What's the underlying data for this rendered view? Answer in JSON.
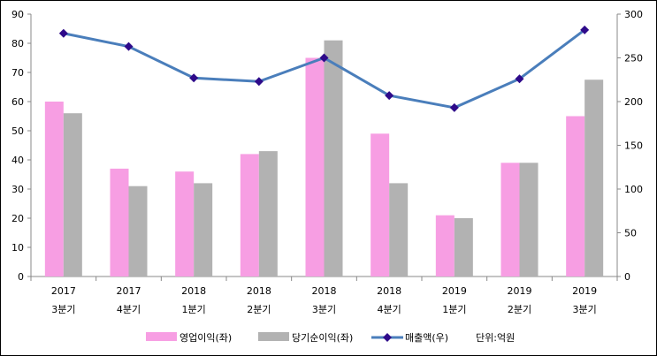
{
  "chart_data": {
    "type": "bar",
    "categories": [
      [
        "2017",
        "3분기"
      ],
      [
        "2017",
        "4분기"
      ],
      [
        "2018",
        "1분기"
      ],
      [
        "2018",
        "2분기"
      ],
      [
        "2018",
        "3분기"
      ],
      [
        "2018",
        "4분기"
      ],
      [
        "2019",
        "1분기"
      ],
      [
        "2019",
        "2분기"
      ],
      [
        "2019",
        "3분기"
      ]
    ],
    "series": [
      {
        "name": "영업이익(좌)",
        "type": "bar",
        "axis": "left",
        "color": "#f79ee3",
        "values": [
          60,
          37,
          36,
          42,
          75,
          49,
          21,
          39,
          55
        ]
      },
      {
        "name": "당기순이익(좌)",
        "type": "bar",
        "axis": "left",
        "color": "#b2b2b2",
        "values": [
          56,
          31,
          32,
          43,
          81,
          32,
          20,
          39,
          67.5
        ]
      },
      {
        "name": "매출액(우)",
        "type": "line",
        "axis": "right",
        "color": "#4a7ebb",
        "marker_color": "#2e0a8a",
        "values": [
          278,
          263,
          227,
          223,
          250,
          207,
          193,
          226,
          282
        ]
      }
    ],
    "unit_note": "단위:억원",
    "y_left": {
      "lim": [
        0,
        90
      ],
      "ticks": [
        0,
        10,
        20,
        30,
        40,
        50,
        60,
        70,
        80,
        90
      ]
    },
    "y_right": {
      "lim": [
        0,
        300
      ],
      "ticks": [
        0,
        50,
        100,
        150,
        200,
        250,
        300
      ]
    },
    "grid": false,
    "legend_position": "bottom"
  }
}
